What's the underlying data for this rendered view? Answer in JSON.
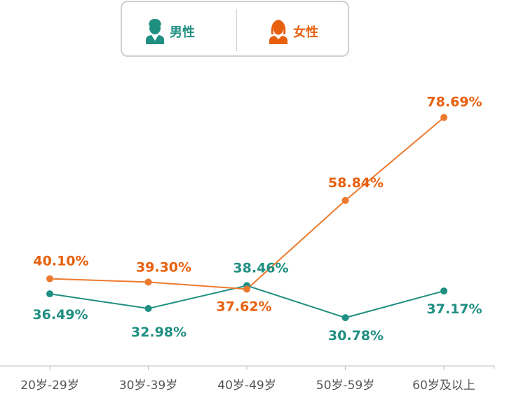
{
  "legend": {
    "male_label": "男性",
    "female_label": "女性",
    "male_icon": "man-user-icon",
    "female_icon": "woman-user-icon"
  },
  "colors": {
    "male": "#1f8f82",
    "female": "#ec7a2e",
    "female_label": "#e8600e",
    "axis": "#bfbfbf",
    "tick_label": "#555555"
  },
  "chart_data": {
    "type": "line",
    "categories": [
      "20岁-29岁",
      "30岁-39岁",
      "40岁-49岁",
      "50岁-59岁",
      "60岁及以上"
    ],
    "series": [
      {
        "name": "男性",
        "values": [
          36.49,
          32.98,
          38.46,
          30.78,
          37.17
        ],
        "labels": [
          "36.49%",
          "32.98%",
          "38.46%",
          "30.78%",
          "37.17%"
        ]
      },
      {
        "name": "女性",
        "values": [
          40.1,
          39.3,
          37.62,
          58.84,
          78.69
        ],
        "labels": [
          "40.10%",
          "39.30%",
          "37.62%",
          "58.84%",
          "78.69%"
        ]
      }
    ],
    "grid": false,
    "legend_position": "top-center"
  }
}
